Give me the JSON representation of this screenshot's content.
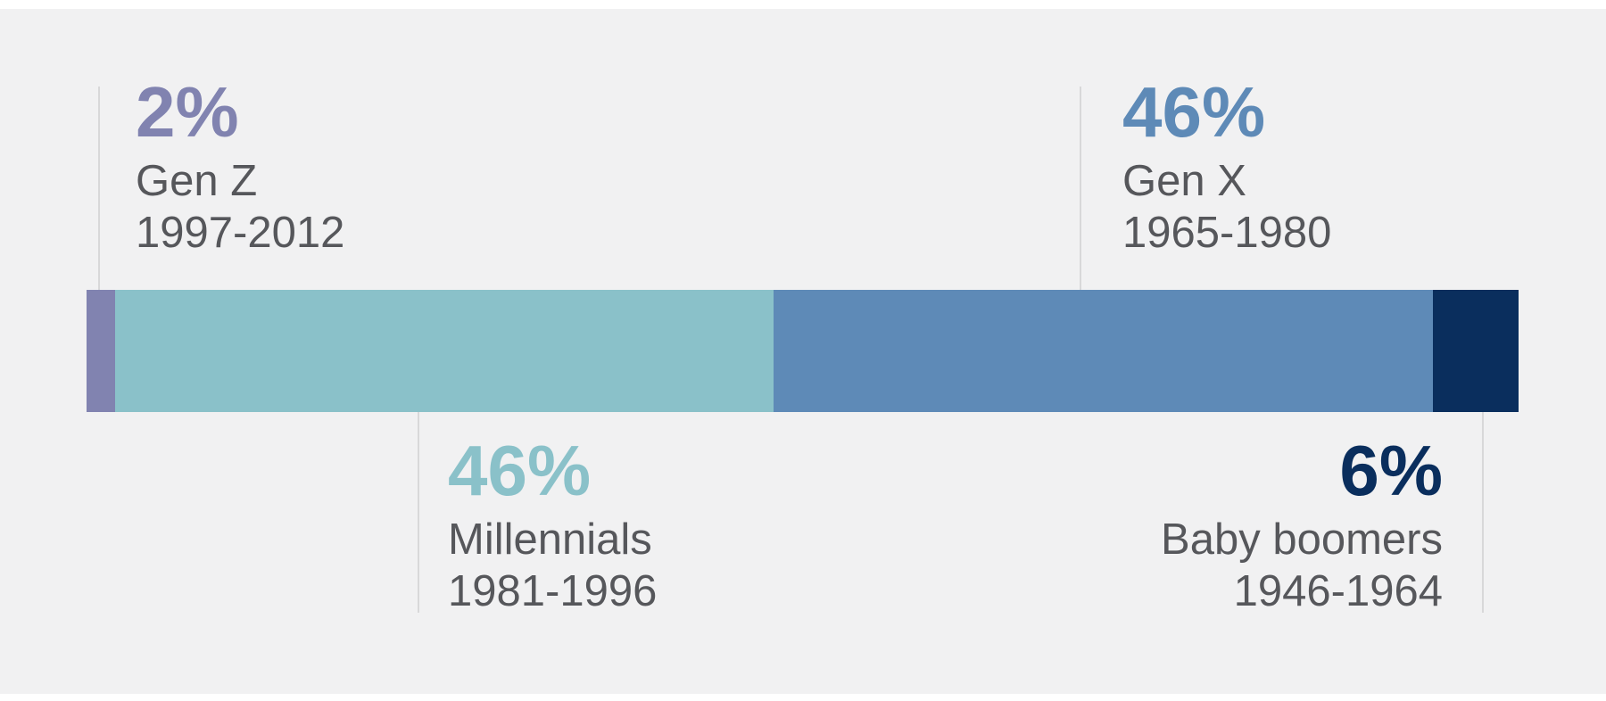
{
  "chart_data": {
    "type": "bar",
    "subtype": "horizontal-stacked-percentage",
    "title": "",
    "categories": [
      "Gen Z",
      "Millennials",
      "Gen X",
      "Baby boomers"
    ],
    "values": [
      2,
      46,
      46,
      6
    ],
    "segments": [
      {
        "label": "Gen Z",
        "years": "1997-2012",
        "value": 2,
        "display": "2%",
        "color": "#8183b0",
        "label_position": "top-left"
      },
      {
        "label": "Millennials",
        "years": "1981-1996",
        "value": 46,
        "display": "46%",
        "color": "#8ac1c9",
        "label_position": "bottom-left"
      },
      {
        "label": "Gen X",
        "years": "1965-1980",
        "value": 46,
        "display": "46%",
        "color": "#5e8ab7",
        "label_position": "top-right"
      },
      {
        "label": "Baby boomers",
        "years": "1946-1964",
        "value": 6,
        "display": "6%",
        "color": "#0a2e5d",
        "label_position": "bottom-right"
      }
    ],
    "legend": "none",
    "axes": "none",
    "total": 100
  },
  "style": {
    "background_color": "#f1f1f2",
    "page_edge_color": "#ffffff",
    "label_text_color": "#56575b",
    "connector_line_color": "#d8d8d9"
  }
}
